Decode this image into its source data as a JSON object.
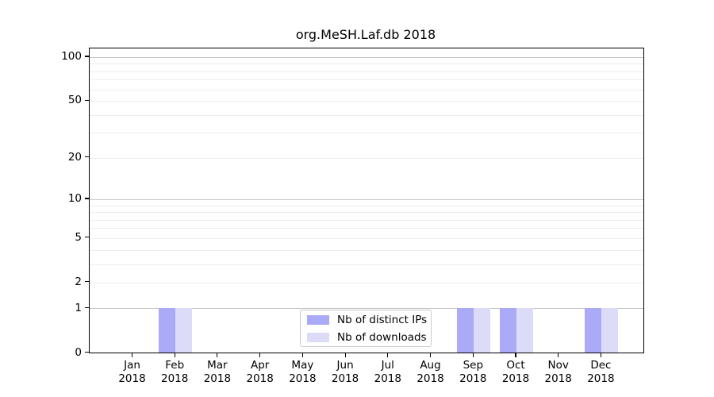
{
  "chart_data": {
    "type": "bar",
    "title": "org.MeSH.Laf.db 2018",
    "categories": [
      "Jan",
      "Feb",
      "Mar",
      "Apr",
      "May",
      "Jun",
      "Jul",
      "Aug",
      "Sep",
      "Oct",
      "Nov",
      "Dec"
    ],
    "x_year_label": "2018",
    "series": [
      {
        "name": "Nb of distinct IPs",
        "color": "#aaaaf6",
        "values": [
          0,
          1,
          0,
          0,
          0,
          0,
          0,
          0,
          1,
          1,
          0,
          1
        ]
      },
      {
        "name": "Nb of downloads",
        "color": "#dcdcf9",
        "values": [
          0,
          1,
          0,
          0,
          0,
          0,
          0,
          0,
          1,
          1,
          0,
          1
        ]
      }
    ],
    "y_axis": {
      "scale": "log1p",
      "tick_labels": [
        0,
        1,
        2,
        5,
        10,
        20,
        50,
        100
      ],
      "min": 0,
      "max": 100
    },
    "grid": {
      "major_values": [
        1,
        10,
        100
      ],
      "minor_values": [
        2,
        3,
        4,
        5,
        6,
        7,
        8,
        9,
        20,
        30,
        40,
        50,
        60,
        70,
        80,
        90
      ],
      "major_color": "#c6c6c6",
      "minor_color": "#ededed"
    },
    "legend_position": "lower center"
  },
  "colors": {
    "background": "#ffffff",
    "axis": "#000000",
    "text": "#000000"
  }
}
